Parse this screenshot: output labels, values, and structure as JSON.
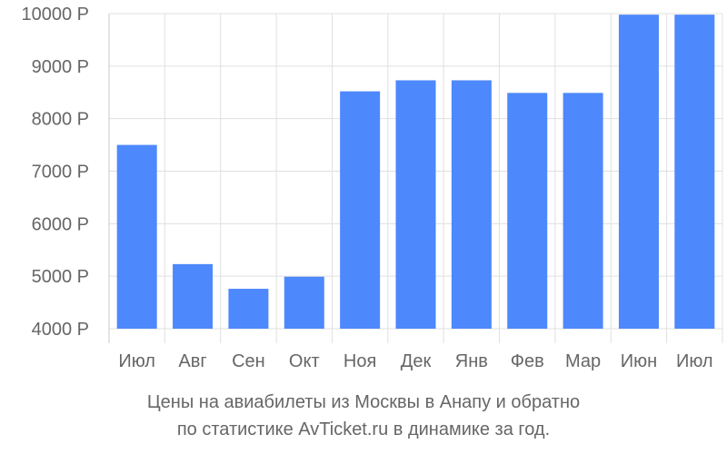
{
  "chart_data": {
    "type": "bar",
    "categories": [
      "Июл",
      "Авг",
      "Сен",
      "Окт",
      "Ноя",
      "Дек",
      "Янв",
      "Фев",
      "Мар",
      "Июн",
      "Июл"
    ],
    "values": [
      7500,
      5230,
      4760,
      4990,
      8520,
      8730,
      8730,
      8490,
      8490,
      9980,
      9980
    ],
    "yticks": [
      "4000 Р",
      "5000 Р",
      "6000 Р",
      "7000 Р",
      "8000 Р",
      "9000 Р",
      "10000 Р"
    ],
    "ytick_values": [
      4000,
      5000,
      6000,
      7000,
      8000,
      9000,
      10000
    ],
    "ylim": [
      4000,
      10000
    ],
    "grid": true,
    "bar_color": "#4d88fc",
    "grid_color": "#e0e0e0",
    "label_color": "#666666"
  },
  "caption": {
    "line1": "Цены на авиабилеты из Москвы в Анапу и обратно",
    "line2": "по статистике AvTicket.ru в динамике за год."
  }
}
